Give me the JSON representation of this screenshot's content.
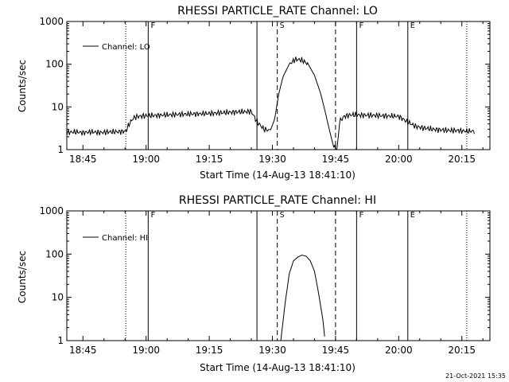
{
  "footer": {
    "date_stamp": "21-Oct-2021 15:35"
  },
  "chart_data": [
    {
      "type": "line",
      "title": "RHESSI PARTICLE_RATE Channel: LO",
      "xlabel": "Start Time (14-Aug-13 18:41:10)",
      "ylabel": "Counts/sec",
      "y_scale": "log",
      "ylim": [
        1,
        1000
      ],
      "xlim": [
        "18:41:10",
        "20:21:40"
      ],
      "x_tick_labels": [
        "18:45",
        "19:00",
        "19:15",
        "19:30",
        "19:45",
        "20:00",
        "20:15"
      ],
      "y_tick_labels": [
        "1",
        "10",
        "100",
        "1000"
      ],
      "legend": {
        "entries": [
          "Channel: LO"
        ],
        "position": "top-left"
      },
      "markers": [
        {
          "time": "18:55:10",
          "style": "dotted",
          "label": ""
        },
        {
          "time": "19:00:30",
          "style": "solid",
          "label": "F"
        },
        {
          "time": "19:26:20",
          "style": "solid",
          "label": ""
        },
        {
          "time": "19:31:10",
          "style": "dashed",
          "label": "S"
        },
        {
          "time": "19:45:00",
          "style": "dashed",
          "label": ""
        },
        {
          "time": "19:50:00",
          "style": "solid",
          "label": "F"
        },
        {
          "time": "20:02:10",
          "style": "solid",
          "label": "E"
        },
        {
          "time": "20:16:10",
          "style": "dotted",
          "label": ""
        }
      ],
      "series": [
        {
          "name": "Channel: LO",
          "x": [
            "18:41:10",
            "18:43:00",
            "18:45:00",
            "18:47:00",
            "18:49:00",
            "18:51:00",
            "18:53:00",
            "18:55:10",
            "18:56:00",
            "18:57:00",
            "18:58:00",
            "19:00:00",
            "19:05:00",
            "19:10:00",
            "19:15:00",
            "19:20:00",
            "19:25:00",
            "19:26:20",
            "19:28:00",
            "19:29:30",
            "19:30:30",
            "19:31:30",
            "19:32:30",
            "19:34:00",
            "19:35:30",
            "19:37:00",
            "19:38:30",
            "19:40:00",
            "19:41:30",
            "19:42:30",
            "19:43:30",
            "19:44:30",
            "19:45:20",
            "19:46:00",
            "19:47:00",
            "19:48:30",
            "19:50:00",
            "19:52:00",
            "19:55:00",
            "20:00:00",
            "20:02:00",
            "20:04:00",
            "20:06:00",
            "20:08:00",
            "20:10:00",
            "20:12:00",
            "20:14:00",
            "20:16:00",
            "20:18:00"
          ],
          "values": [
            2.5,
            2.6,
            2.5,
            2.6,
            2.5,
            2.6,
            2.6,
            2.7,
            4.0,
            5.5,
            6.0,
            6.2,
            6.5,
            6.8,
            7.0,
            7.5,
            7.8,
            4.5,
            3.0,
            2.8,
            5.0,
            20,
            50,
            100,
            130,
            125,
            100,
            55,
            20,
            8,
            3,
            1.2,
            1.0,
            4.5,
            6.0,
            6.5,
            6.5,
            6.4,
            6.3,
            6.0,
            4.5,
            3.5,
            3.2,
            3.0,
            2.9,
            2.8,
            2.8,
            2.7,
            2.7
          ]
        }
      ]
    },
    {
      "type": "line",
      "title": "RHESSI PARTICLE_RATE Channel: HI",
      "xlabel": "Start Time (14-Aug-13 18:41:10)",
      "ylabel": "Counts/sec",
      "y_scale": "log",
      "ylim": [
        1,
        1000
      ],
      "xlim": [
        "18:41:10",
        "20:21:40"
      ],
      "x_tick_labels": [
        "18:45",
        "19:00",
        "19:15",
        "19:30",
        "19:45",
        "20:00",
        "20:15"
      ],
      "y_tick_labels": [
        "1",
        "10",
        "100",
        "1000"
      ],
      "legend": {
        "entries": [
          "Channel: HI"
        ],
        "position": "top-left"
      },
      "markers": [
        {
          "time": "18:55:10",
          "style": "dotted",
          "label": ""
        },
        {
          "time": "19:00:30",
          "style": "solid",
          "label": "F"
        },
        {
          "time": "19:26:20",
          "style": "solid",
          "label": ""
        },
        {
          "time": "19:31:10",
          "style": "dashed",
          "label": "S"
        },
        {
          "time": "19:45:00",
          "style": "dashed",
          "label": ""
        },
        {
          "time": "19:50:00",
          "style": "solid",
          "label": "F"
        },
        {
          "time": "20:02:10",
          "style": "solid",
          "label": "E"
        },
        {
          "time": "20:16:10",
          "style": "dotted",
          "label": ""
        }
      ],
      "series": [
        {
          "name": "Channel: HI",
          "x": [
            "19:32:00",
            "19:33:00",
            "19:34:00",
            "19:35:00",
            "19:36:00",
            "19:37:00",
            "19:38:00",
            "19:39:00",
            "19:40:00",
            "19:41:00",
            "19:42:00",
            "19:42:30"
          ],
          "values": [
            1.0,
            7,
            35,
            70,
            85,
            95,
            90,
            70,
            40,
            12,
            3,
            1.0
          ]
        }
      ]
    }
  ]
}
